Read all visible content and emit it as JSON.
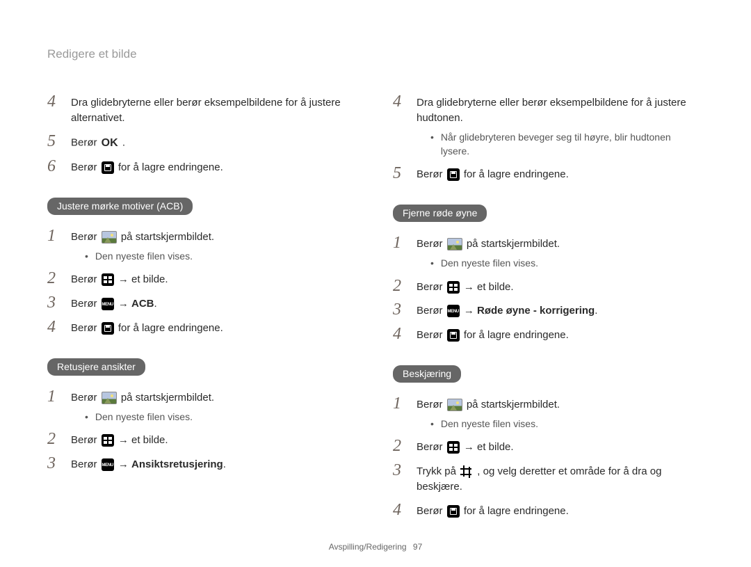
{
  "page": {
    "title": "Redigere et bilde",
    "footer_section": "Avspilling/Redigering",
    "footer_page": "97"
  },
  "cont_left": {
    "items": [
      {
        "n": "4",
        "parts": [
          "Dra glidebryterne eller berør eksempelbildene for å justere alternativet."
        ]
      },
      {
        "n": "5",
        "parts": [
          "Berør ",
          {
            "icon": "ok"
          },
          " ."
        ]
      },
      {
        "n": "6",
        "parts": [
          "Berør ",
          {
            "icon": "save"
          },
          " for å lagre endringene."
        ]
      }
    ]
  },
  "cont_right": {
    "items": [
      {
        "n": "4",
        "parts": [
          "Dra glidebryterne eller berør eksempelbildene for å justere hudtonen."
        ],
        "sub": "Når glidebryteren beveger seg til høyre, blir hudtonen lysere."
      },
      {
        "n": "5",
        "parts": [
          "Berør ",
          {
            "icon": "save"
          },
          " for å lagre endringene."
        ]
      }
    ]
  },
  "acb": {
    "heading": "Justere mørke motiver (ACB)",
    "items": [
      {
        "n": "1",
        "parts": [
          "Berør ",
          {
            "icon": "gallery"
          },
          " på startskjermbildet."
        ],
        "sub": "Den nyeste filen vises."
      },
      {
        "n": "2",
        "parts": [
          "Berør ",
          {
            "icon": "thumbs"
          },
          " → et bilde."
        ]
      },
      {
        "n": "3",
        "parts": [
          "Berør ",
          {
            "icon": "menu"
          },
          " → ",
          {
            "bold": "ACB"
          },
          "."
        ]
      },
      {
        "n": "4",
        "parts": [
          "Berør ",
          {
            "icon": "save"
          },
          " for å lagre endringene."
        ]
      }
    ]
  },
  "retouch": {
    "heading": "Retusjere ansikter",
    "items": [
      {
        "n": "1",
        "parts": [
          "Berør ",
          {
            "icon": "gallery"
          },
          " på startskjermbildet."
        ],
        "sub": "Den nyeste filen vises."
      },
      {
        "n": "2",
        "parts": [
          "Berør ",
          {
            "icon": "thumbs"
          },
          " → et bilde."
        ]
      },
      {
        "n": "3",
        "parts": [
          "Berør ",
          {
            "icon": "menu"
          },
          " → ",
          {
            "bold": "Ansiktsretusjering"
          },
          "."
        ]
      }
    ]
  },
  "redeye": {
    "heading": "Fjerne røde øyne",
    "items": [
      {
        "n": "1",
        "parts": [
          "Berør ",
          {
            "icon": "gallery"
          },
          " på startskjermbildet."
        ],
        "sub": "Den nyeste filen vises."
      },
      {
        "n": "2",
        "parts": [
          "Berør ",
          {
            "icon": "thumbs"
          },
          " → et bilde."
        ]
      },
      {
        "n": "3",
        "parts": [
          "Berør ",
          {
            "icon": "menu"
          },
          " → ",
          {
            "bold": "Røde øyne - korrigering"
          },
          "."
        ]
      },
      {
        "n": "4",
        "parts": [
          "Berør ",
          {
            "icon": "save"
          },
          " for å lagre endringene."
        ]
      }
    ]
  },
  "crop": {
    "heading": "Beskjæring",
    "items": [
      {
        "n": "1",
        "parts": [
          "Berør ",
          {
            "icon": "gallery"
          },
          " på startskjermbildet."
        ],
        "sub": "Den nyeste filen vises."
      },
      {
        "n": "2",
        "parts": [
          "Berør ",
          {
            "icon": "thumbs"
          },
          " → et bilde."
        ]
      },
      {
        "n": "3",
        "parts": [
          "Trykk på ",
          {
            "icon": "crop"
          },
          " , og velg deretter et område for å dra og beskjære."
        ]
      },
      {
        "n": "4",
        "parts": [
          "Berør ",
          {
            "icon": "save"
          },
          " for å lagre endringene."
        ]
      }
    ]
  }
}
